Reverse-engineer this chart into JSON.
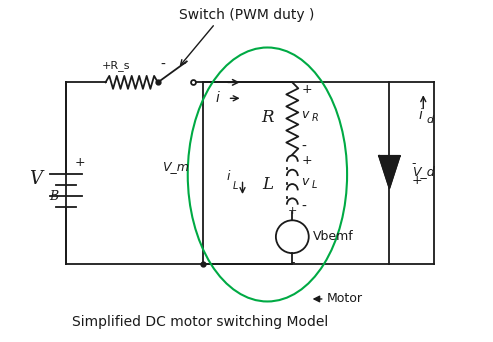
{
  "title": "Simplified DC motor switching Model",
  "switch_label": "Switch (PWM duty )",
  "motor_label": "Motor",
  "bg_color": "#ffffff",
  "line_color": "#1a1a1a",
  "ellipse_color": "#00aa44",
  "figsize": [
    4.93,
    3.42
  ],
  "dpi": 100,
  "xlim": [
    0,
    9.86
  ],
  "ylim": [
    0,
    6.84
  ]
}
